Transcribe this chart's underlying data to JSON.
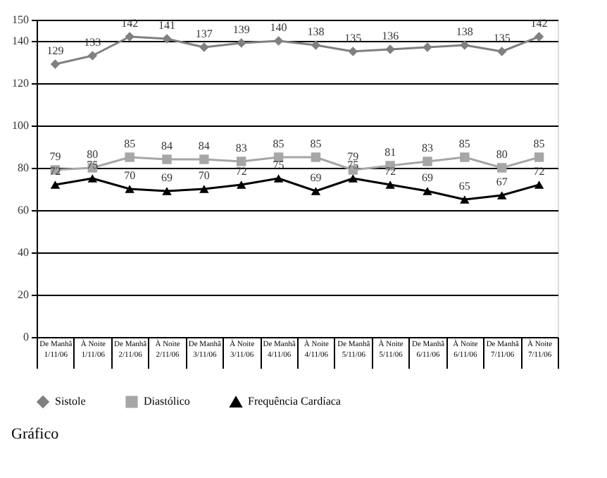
{
  "chart_data": {
    "type": "line",
    "title": "Gráfico",
    "categories": [
      "De Manhã\n1/11/06",
      "À Noite\n1/11/06",
      "De Manhã\n2/11/06",
      "À Noite\n2/11/06",
      "De Manhã\n3/11/06",
      "À Noite\n3/11/06",
      "De Manhã\n4/11/06",
      "À Noite\n4/11/06",
      "De Manhã\n5/11/06",
      "À Noite\n5/11/06",
      "De Manhã\n6/11/06",
      "À Noite\n6/11/06",
      "De Manhã\n7/11/06",
      "À Noite\n7/11/06"
    ],
    "series": [
      {
        "name": "Sistole",
        "color": "#808080",
        "marker": "diamond",
        "values": [
          129,
          133,
          142,
          141,
          137,
          139,
          140,
          138,
          135,
          136,
          137,
          138,
          135,
          142
        ],
        "value_labels": [
          "129",
          "133",
          "142",
          "141",
          "137",
          "139",
          "140",
          "138",
          "135",
          "136",
          null,
          "138",
          "135",
          "142"
        ]
      },
      {
        "name": "Diastólico",
        "color": "#a6a6a6",
        "marker": "square",
        "values": [
          79,
          80,
          85,
          84,
          84,
          83,
          85,
          85,
          79,
          81,
          83,
          85,
          80,
          85
        ],
        "value_labels": [
          "79",
          "80",
          "85",
          "84",
          "84",
          "83",
          "85",
          "85",
          "79",
          "81",
          "83",
          "85",
          "80",
          "85"
        ]
      },
      {
        "name": "Frequência Cardíaca",
        "color": "#000000",
        "marker": "triangle",
        "values": [
          72,
          75,
          70,
          69,
          70,
          72,
          75,
          69,
          75,
          72,
          69,
          65,
          67,
          72
        ],
        "value_labels": [
          "72",
          "75",
          "70",
          "69",
          "70",
          "72",
          "75",
          "69",
          "75",
          "72",
          "69",
          "65",
          "67",
          "72"
        ]
      }
    ],
    "ylim": [
      0,
      150
    ],
    "yticks": [
      0,
      20,
      40,
      60,
      80,
      100,
      120,
      140,
      150
    ],
    "grid": "y",
    "legend": "bottom"
  }
}
